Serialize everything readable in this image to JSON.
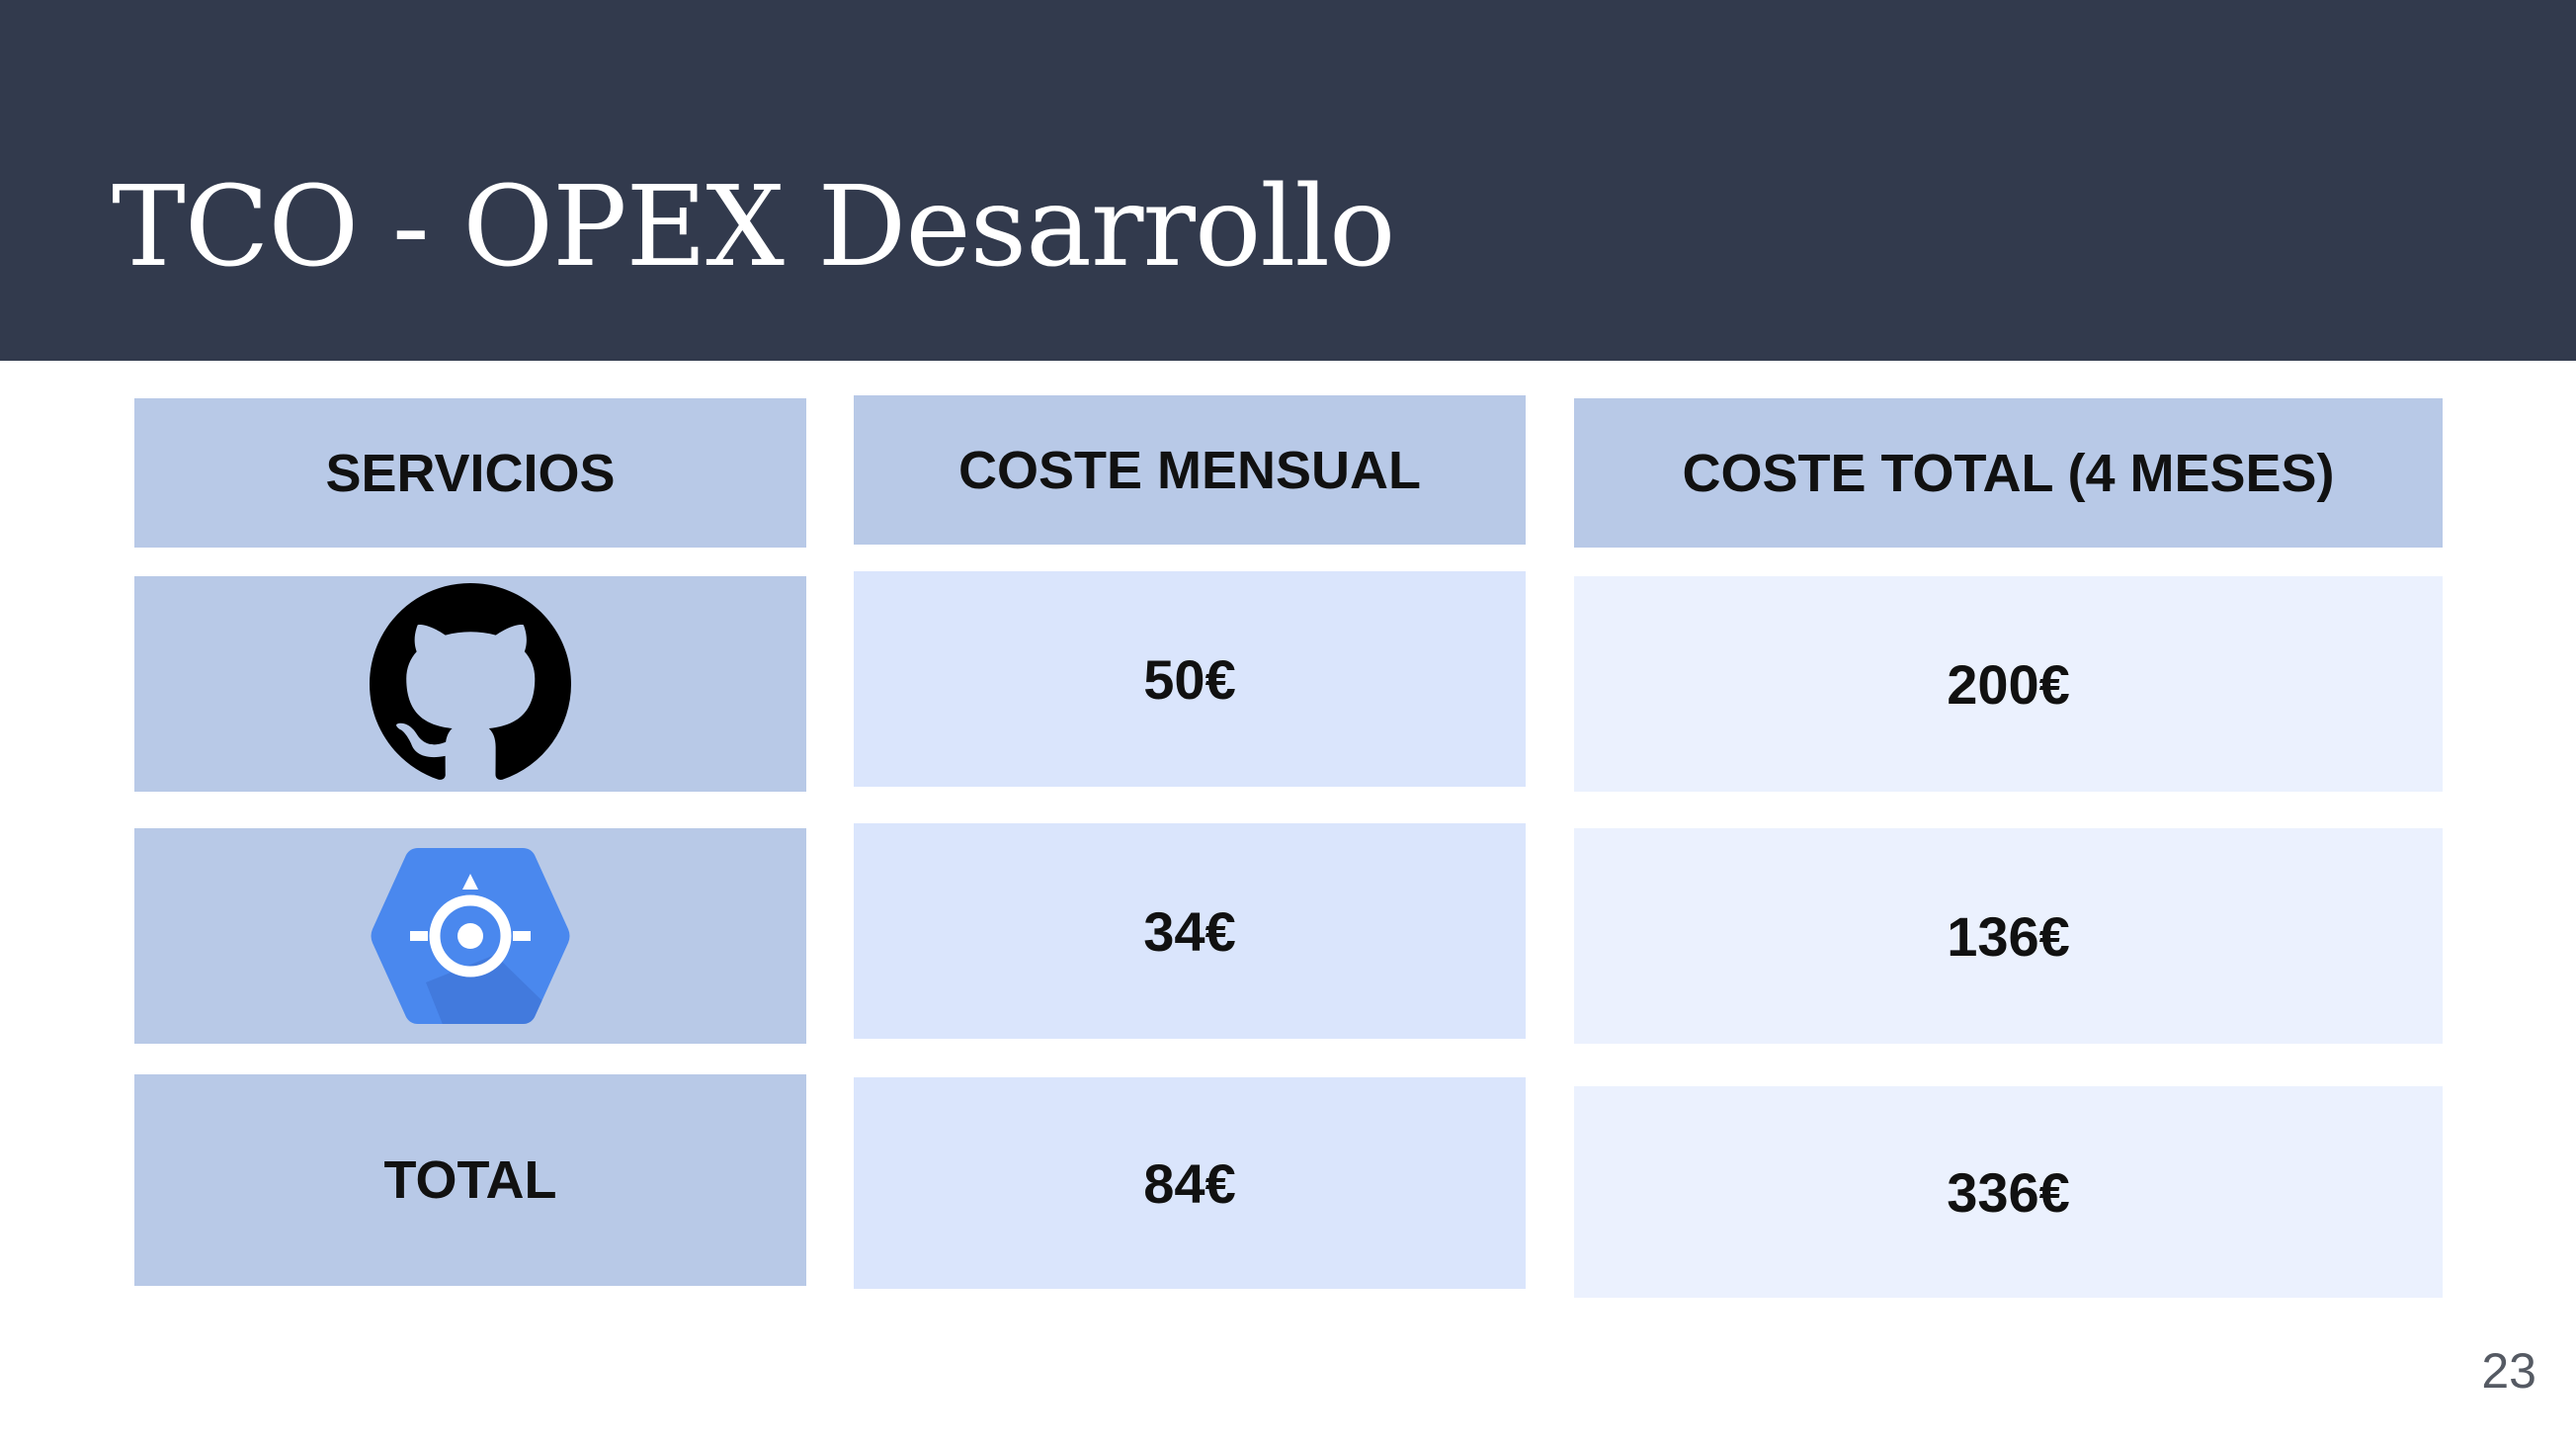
{
  "slide": {
    "title": "TCO - OPEX Desarrollo",
    "page_number": "23"
  },
  "table": {
    "headers": {
      "services": "SERVICIOS",
      "monthly": "COSTE MENSUAL",
      "total": "COSTE TOTAL (4 MESES)"
    },
    "rows": [
      {
        "service_icon": "github-icon",
        "monthly": "50€",
        "total": "200€"
      },
      {
        "service_icon": "google-app-engine-icon",
        "monthly": "34€",
        "total": "136€"
      },
      {
        "service_label": "TOTAL",
        "monthly": "84€",
        "total": "336€"
      }
    ]
  },
  "colors": {
    "header_band": "#323a4d",
    "col1": "#b8c9e7",
    "col2": "#dae5fc",
    "col3": "#ebf1fe",
    "app_engine_blue": "#4a88ee"
  }
}
